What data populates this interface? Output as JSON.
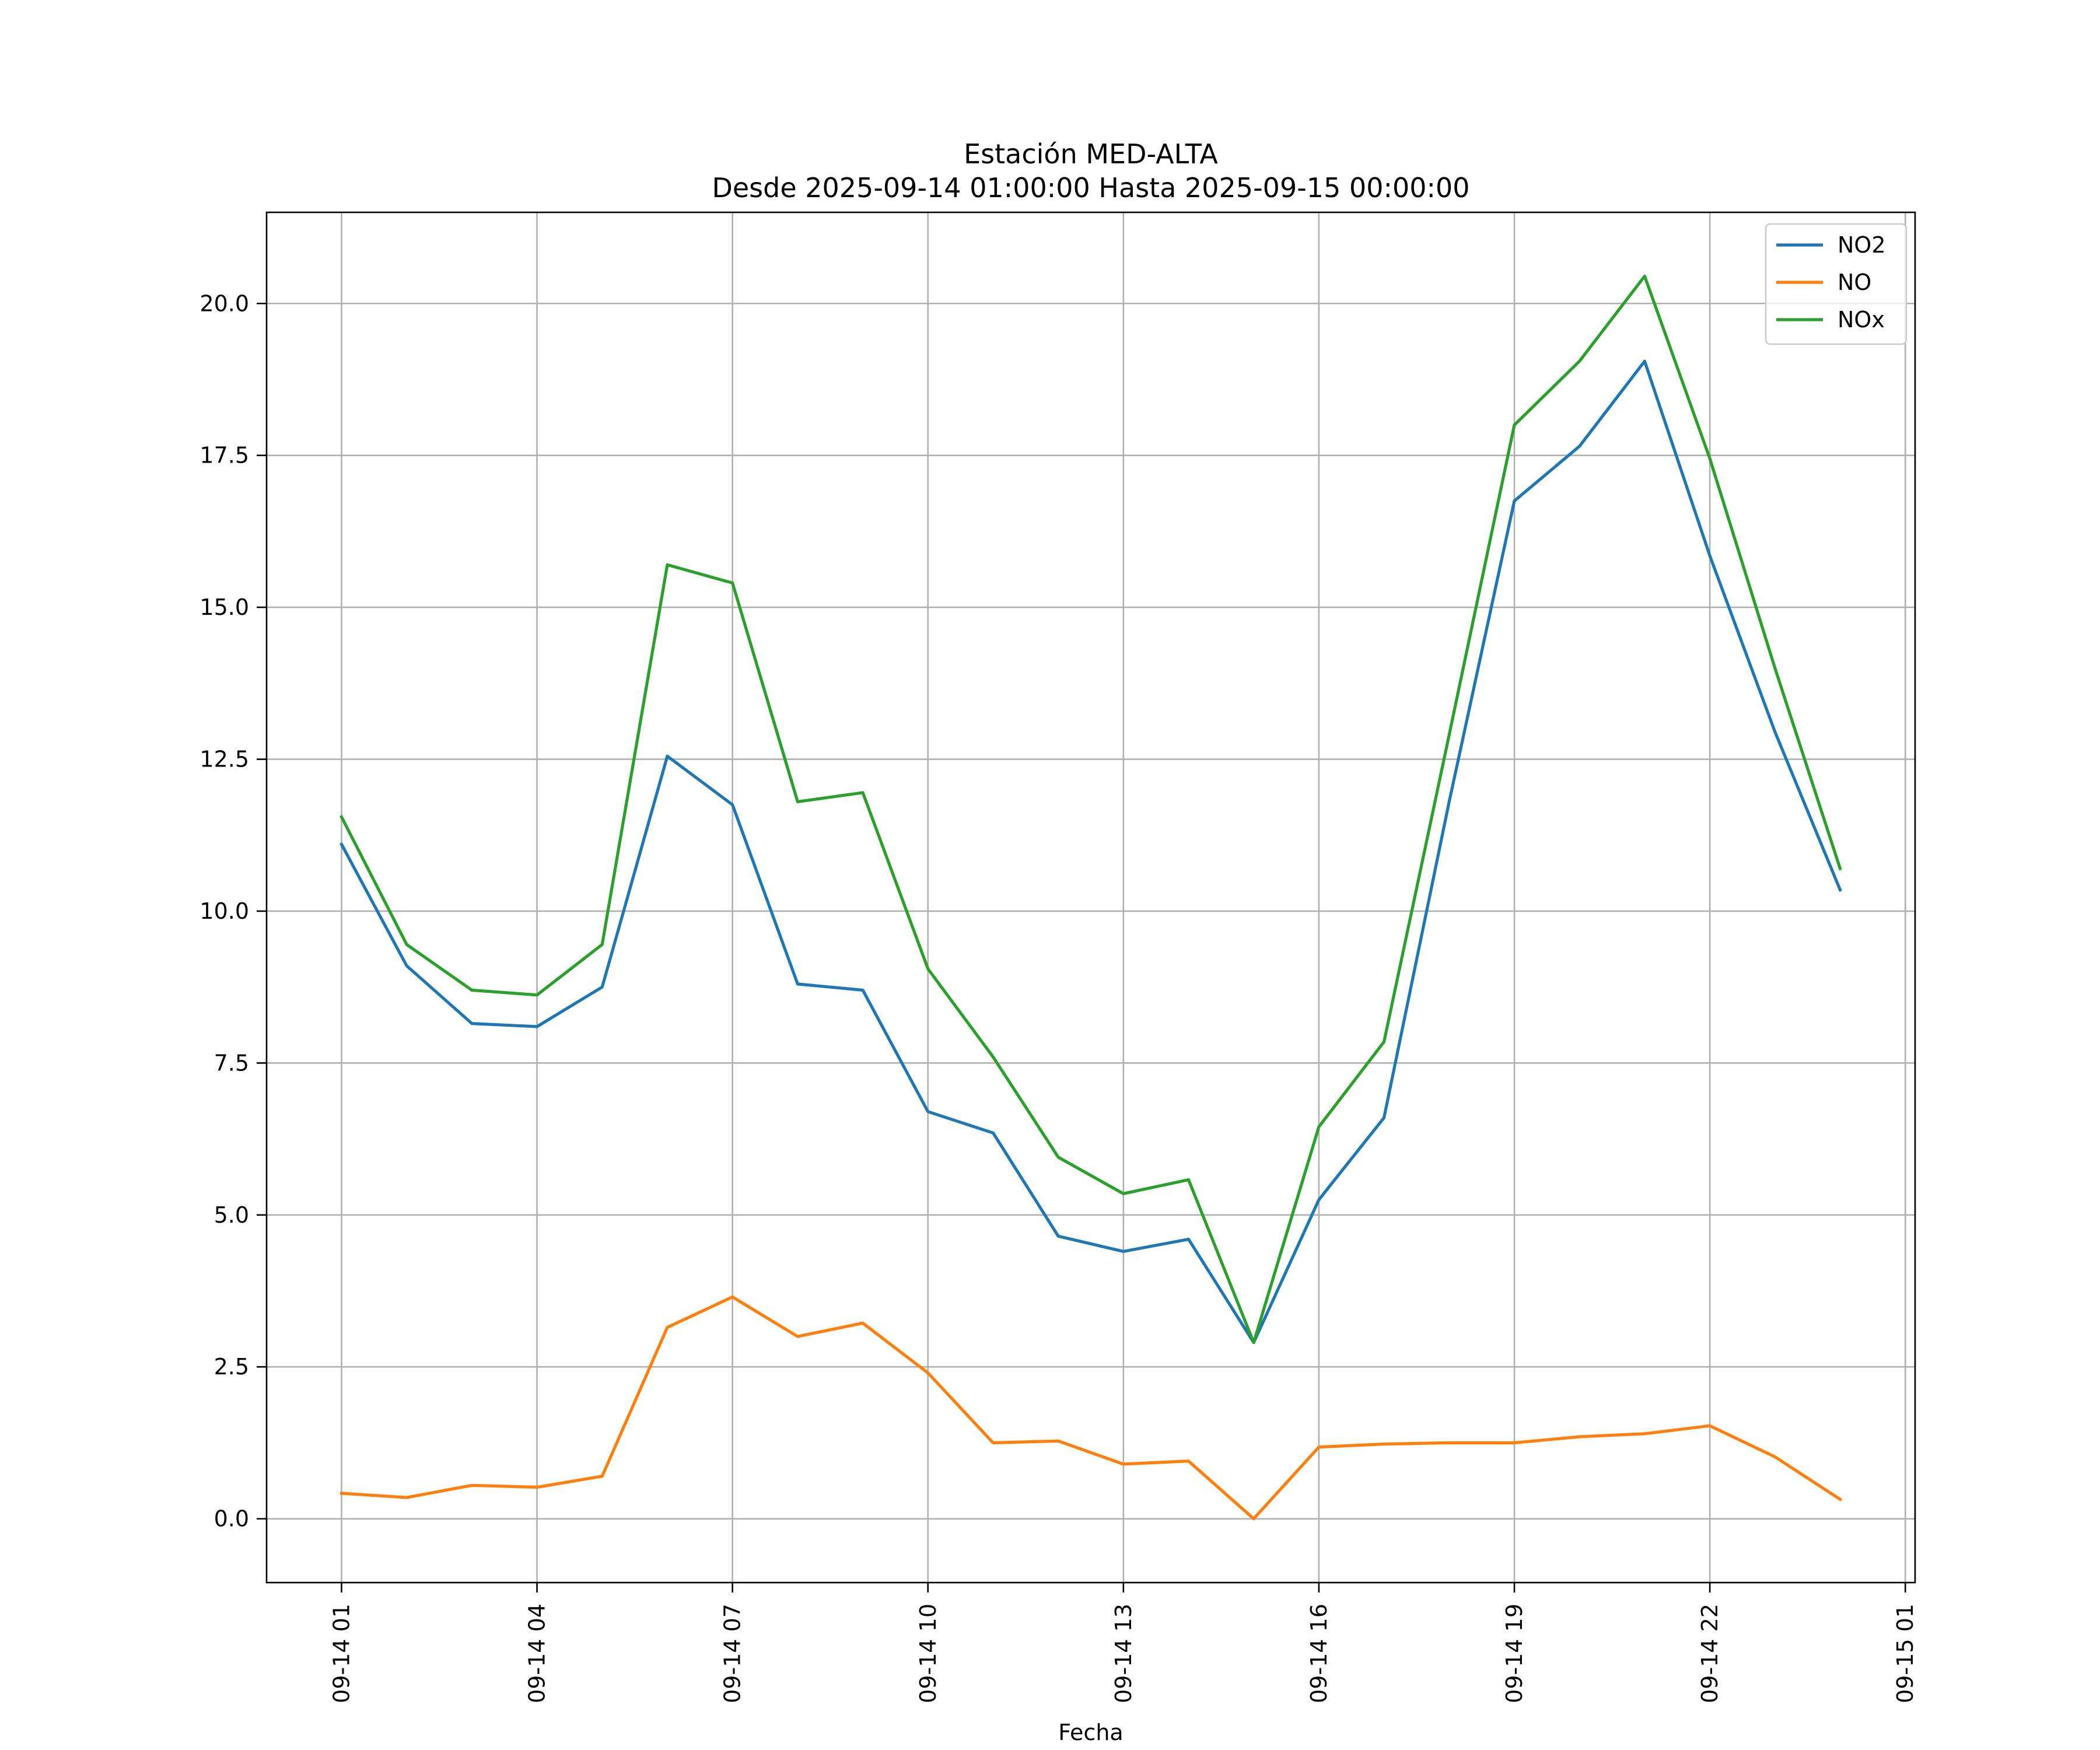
{
  "chart_data": {
    "type": "line",
    "title": "Estación MED-ALTA",
    "subtitle": "Desde 2025-09-14 01:00:00 Hasta 2025-09-15 00:00:00",
    "xlabel": "Fecha",
    "ylabel": "",
    "x": [
      "09-14 01",
      "09-14 02",
      "09-14 03",
      "09-14 04",
      "09-14 05",
      "09-14 06",
      "09-14 07",
      "09-14 08",
      "09-14 09",
      "09-14 10",
      "09-14 11",
      "09-14 12",
      "09-14 13",
      "09-14 14",
      "09-14 15",
      "09-14 16",
      "09-14 17",
      "09-14 18",
      "09-14 19",
      "09-14 20",
      "09-14 21",
      "09-14 22",
      "09-14 23",
      "09-15 00"
    ],
    "x_index_range": [
      -1.15,
      24.15
    ],
    "ylim": [
      -1.05,
      21.5
    ],
    "x_ticks": [
      {
        "label": "09-14 01",
        "index": 0
      },
      {
        "label": "09-14 04",
        "index": 3
      },
      {
        "label": "09-14 07",
        "index": 6
      },
      {
        "label": "09-14 10",
        "index": 9
      },
      {
        "label": "09-14 13",
        "index": 12
      },
      {
        "label": "09-14 16",
        "index": 15
      },
      {
        "label": "09-14 19",
        "index": 18
      },
      {
        "label": "09-14 22",
        "index": 21
      },
      {
        "label": "09-15 01",
        "index": 24
      }
    ],
    "y_ticks": [
      {
        "label": "0.0",
        "value": 0
      },
      {
        "label": "2.5",
        "value": 2.5
      },
      {
        "label": "5.0",
        "value": 5
      },
      {
        "label": "7.5",
        "value": 7.5
      },
      {
        "label": "10.0",
        "value": 10
      },
      {
        "label": "12.5",
        "value": 12.5
      },
      {
        "label": "15.0",
        "value": 15
      },
      {
        "label": "17.5",
        "value": 17.5
      },
      {
        "label": "20.0",
        "value": 20
      }
    ],
    "grid": true,
    "legend_position": "top-right",
    "series": [
      {
        "name": "NO2",
        "color": "#1f77b4",
        "values": [
          11.1,
          9.1,
          8.15,
          8.1,
          8.75,
          12.55,
          11.75,
          8.8,
          8.7,
          6.7,
          6.35,
          4.65,
          4.4,
          4.6,
          2.9,
          5.25,
          6.6,
          11.8,
          16.75,
          17.65,
          19.05,
          15.85,
          12.95,
          10.35
        ]
      },
      {
        "name": "NO",
        "color": "#ff7f0e",
        "values": [
          0.42,
          0.35,
          0.55,
          0.52,
          0.7,
          3.15,
          3.65,
          3.0,
          3.22,
          2.4,
          1.25,
          1.28,
          0.9,
          0.95,
          0.0,
          1.18,
          1.23,
          1.25,
          1.25,
          1.35,
          1.4,
          1.53,
          1.02,
          0.32
        ]
      },
      {
        "name": "NOx",
        "color": "#2ca02c",
        "values": [
          11.55,
          9.45,
          8.7,
          8.62,
          9.45,
          15.7,
          15.4,
          11.8,
          11.95,
          9.05,
          7.6,
          5.95,
          5.35,
          5.58,
          2.9,
          6.45,
          7.85,
          12.9,
          18.0,
          19.05,
          20.45,
          17.45,
          14.0,
          10.7
        ]
      }
    ]
  }
}
